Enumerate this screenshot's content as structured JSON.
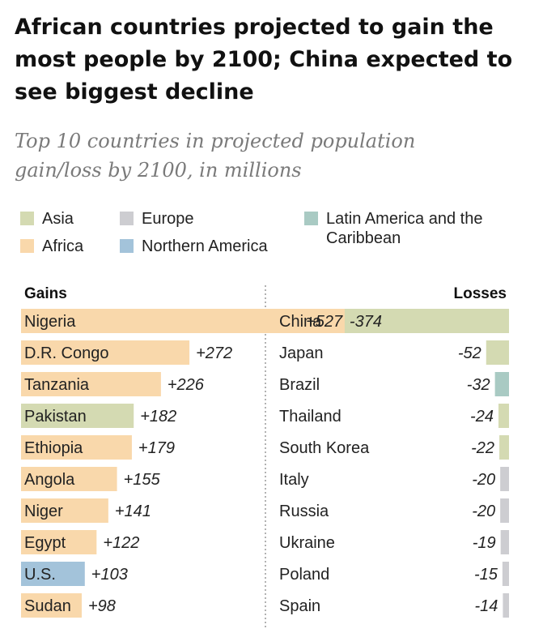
{
  "title": "African countries projected to gain the most people by 2100; China expected to see biggest decline",
  "subtitle": "Top 10 countries in projected population gain/loss by 2100, in millions",
  "colors": {
    "Asia": "#d4dab2",
    "Europe": "#cdcdd1",
    "Latin America and the Caribbean": "#a9cac3",
    "Africa": "#f9d8ab",
    "Northern America": "#a3c3da",
    "divider": "#999999",
    "text": "#222222"
  },
  "legend": [
    {
      "label": "Asia",
      "region": "Asia"
    },
    {
      "label": "Africa",
      "region": "Africa"
    },
    {
      "label": "Europe",
      "region": "Europe"
    },
    {
      "label": "Northern America",
      "region": "Northern America"
    },
    {
      "label": "Latin America and the Caribbean",
      "region": "Latin America and the Caribbean"
    }
  ],
  "chart_data": {
    "type": "bar",
    "panels": [
      {
        "heading": "Gains",
        "value_labels": [
          "+527",
          "+272",
          "+226",
          "+182",
          "+179",
          "+155",
          "+141",
          "+122",
          "+103",
          "+98"
        ],
        "categories": [
          "Nigeria",
          "D.R. Congo",
          "Tanzania",
          "Pakistan",
          "Ethiopia",
          "Angola",
          "Niger",
          "Egypt",
          "U.S.",
          "Sudan"
        ],
        "values": [
          527,
          272,
          226,
          182,
          179,
          155,
          141,
          122,
          103,
          98
        ],
        "regions": [
          "Africa",
          "Africa",
          "Africa",
          "Asia",
          "Africa",
          "Africa",
          "Africa",
          "Africa",
          "Northern America",
          "Africa"
        ]
      },
      {
        "heading": "Losses",
        "value_labels": [
          "-374",
          "-52",
          "-32",
          "-24",
          "-22",
          "-20",
          "-20",
          "-19",
          "-15",
          "-14"
        ],
        "categories": [
          "China",
          "Japan",
          "Brazil",
          "Thailand",
          "South Korea",
          "Italy",
          "Russia",
          "Ukraine",
          "Poland",
          "Spain"
        ],
        "values": [
          -374,
          -52,
          -32,
          -24,
          -22,
          -20,
          -20,
          -19,
          -15,
          -14
        ],
        "regions": [
          "Asia",
          "Asia",
          "Latin America and the Caribbean",
          "Asia",
          "Asia",
          "Europe",
          "Europe",
          "Europe",
          "Europe",
          "Europe"
        ]
      }
    ]
  }
}
